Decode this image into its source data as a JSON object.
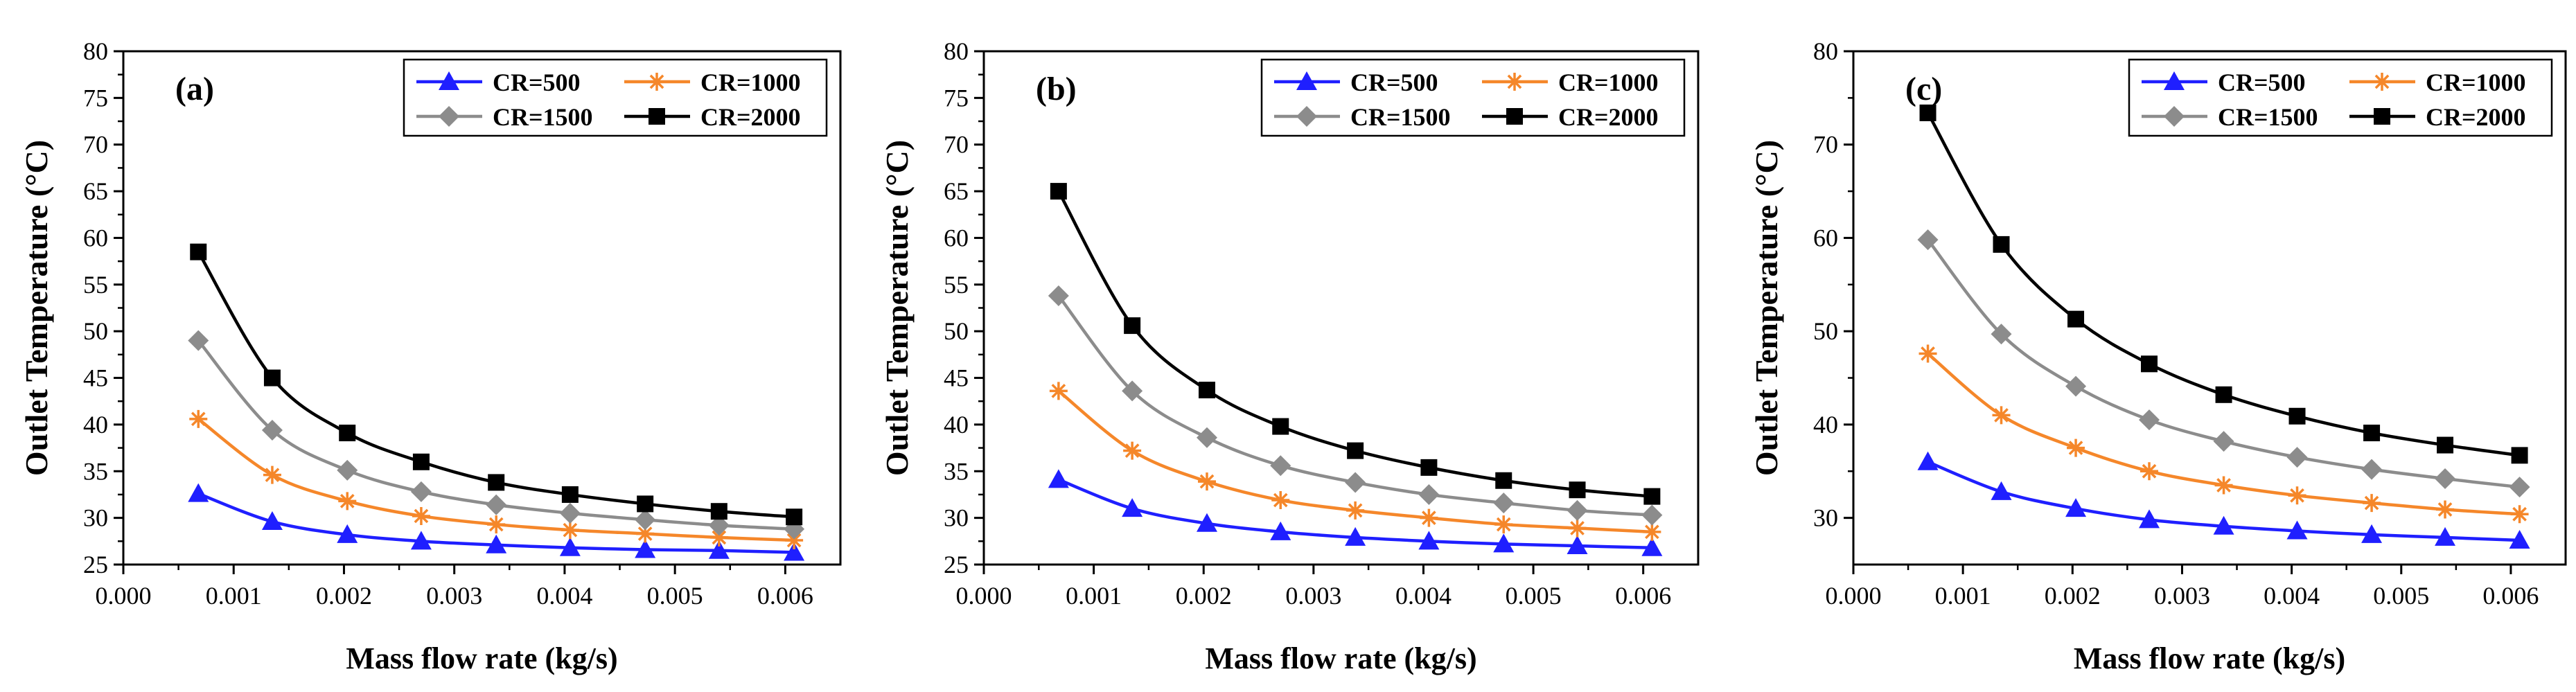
{
  "chart_data": [
    {
      "type": "line",
      "panel_label": "(a)",
      "xlabel": "Mass flow rate (kg/s)",
      "ylabel": "Outlet Temperature (°C)",
      "xlim": [
        0.0,
        0.0065
      ],
      "ylim": [
        25,
        80
      ],
      "xticks": [
        0.0,
        0.001,
        0.002,
        0.003,
        0.004,
        0.005,
        0.006
      ],
      "xtick_labels": [
        "0.000",
        "0.001",
        "0.002",
        "0.003",
        "0.004",
        "0.005",
        "0.006"
      ],
      "yticks": [
        25,
        30,
        35,
        40,
        45,
        50,
        55,
        60,
        65,
        70,
        75,
        80
      ],
      "ytick_labels": [
        "25",
        "30",
        "35",
        "40",
        "45",
        "50",
        "55",
        "60",
        "65",
        "70",
        "75",
        "80"
      ],
      "legend": "top-right",
      "x": [
        0.00068,
        0.00135,
        0.00203,
        0.0027,
        0.00338,
        0.00405,
        0.00473,
        0.0054,
        0.00608
      ],
      "series": [
        {
          "name": "CR=500",
          "color": "#1f1fff",
          "marker": "triangle",
          "values": [
            32.6,
            29.6,
            28.2,
            27.5,
            27.1,
            26.8,
            26.6,
            26.5,
            26.3
          ]
        },
        {
          "name": "CR=1000",
          "color": "#f5872a",
          "marker": "star",
          "values": [
            40.6,
            34.6,
            31.8,
            30.2,
            29.3,
            28.7,
            28.3,
            27.9,
            27.6
          ]
        },
        {
          "name": "CR=1500",
          "color": "#8c8c8c",
          "marker": "diamond",
          "values": [
            49.0,
            39.4,
            35.1,
            32.8,
            31.4,
            30.5,
            29.8,
            29.2,
            28.8
          ]
        },
        {
          "name": "CR=2000",
          "color": "#000000",
          "marker": "square",
          "values": [
            58.5,
            45.0,
            39.1,
            36.0,
            33.8,
            32.5,
            31.5,
            30.7,
            30.1
          ]
        }
      ]
    },
    {
      "type": "line",
      "panel_label": "(b)",
      "xlabel": "Mass flow rate (kg/s)",
      "ylabel": "Outlet Temperature (°C)",
      "xlim": [
        0.0,
        0.0065
      ],
      "ylim": [
        25,
        80
      ],
      "xticks": [
        0.0,
        0.001,
        0.002,
        0.003,
        0.004,
        0.005,
        0.006
      ],
      "xtick_labels": [
        "0.000",
        "0.001",
        "0.002",
        "0.003",
        "0.004",
        "0.005",
        "0.006"
      ],
      "yticks": [
        25,
        30,
        35,
        40,
        45,
        50,
        55,
        60,
        65,
        70,
        75,
        80
      ],
      "ytick_labels": [
        "25",
        "30",
        "35",
        "40",
        "45",
        "50",
        "55",
        "60",
        "65",
        "70",
        "75",
        "80"
      ],
      "legend": "top-right",
      "x": [
        0.00068,
        0.00135,
        0.00203,
        0.0027,
        0.00338,
        0.00405,
        0.00473,
        0.0054,
        0.00608
      ],
      "series": [
        {
          "name": "CR=500",
          "color": "#1f1fff",
          "marker": "triangle",
          "values": [
            34.1,
            31.0,
            29.4,
            28.5,
            27.9,
            27.5,
            27.2,
            27.0,
            26.8
          ]
        },
        {
          "name": "CR=1000",
          "color": "#f5872a",
          "marker": "star",
          "values": [
            43.6,
            37.2,
            33.9,
            31.9,
            30.8,
            30.0,
            29.3,
            28.9,
            28.5
          ]
        },
        {
          "name": "CR=1500",
          "color": "#8c8c8c",
          "marker": "diamond",
          "values": [
            53.8,
            43.6,
            38.6,
            35.6,
            33.8,
            32.5,
            31.6,
            30.8,
            30.3
          ]
        },
        {
          "name": "CR=2000",
          "color": "#000000",
          "marker": "square",
          "values": [
            65.0,
            50.6,
            43.7,
            39.8,
            37.2,
            35.4,
            34.0,
            33.0,
            32.3
          ]
        }
      ]
    },
    {
      "type": "line",
      "panel_label": "(c)",
      "xlabel": "Mass flow rate (kg/s)",
      "ylabel": "Outlet Temperature (°C)",
      "xlim": [
        0.0,
        0.0065
      ],
      "ylim": [
        25,
        80
      ],
      "xticks": [
        0.0,
        0.001,
        0.002,
        0.003,
        0.004,
        0.005,
        0.006
      ],
      "xtick_labels": [
        "0.000",
        "0.001",
        "0.002",
        "0.003",
        "0.004",
        "0.005",
        "0.006"
      ],
      "yticks": [
        30,
        40,
        50,
        60,
        70,
        80
      ],
      "ytick_labels": [
        "30",
        "40",
        "50",
        "60",
        "70",
        "80"
      ],
      "legend": "top-right",
      "x": [
        0.00068,
        0.00135,
        0.00203,
        0.0027,
        0.00338,
        0.00405,
        0.00473,
        0.0054,
        0.00608
      ],
      "series": [
        {
          "name": "CR=500",
          "color": "#1f1fff",
          "marker": "triangle",
          "values": [
            36.0,
            32.8,
            31.0,
            29.8,
            29.1,
            28.6,
            28.2,
            27.9,
            27.6
          ]
        },
        {
          "name": "CR=1000",
          "color": "#f5872a",
          "marker": "star",
          "values": [
            47.6,
            41.0,
            37.5,
            35.0,
            33.5,
            32.4,
            31.6,
            30.9,
            30.4
          ]
        },
        {
          "name": "CR=1500",
          "color": "#8c8c8c",
          "marker": "diamond",
          "values": [
            59.8,
            49.7,
            44.1,
            40.5,
            38.2,
            36.5,
            35.2,
            34.2,
            33.3
          ]
        },
        {
          "name": "CR=2000",
          "color": "#000000",
          "marker": "square",
          "values": [
            73.4,
            59.3,
            51.3,
            46.5,
            43.2,
            40.9,
            39.1,
            37.8,
            36.7
          ]
        }
      ]
    }
  ]
}
